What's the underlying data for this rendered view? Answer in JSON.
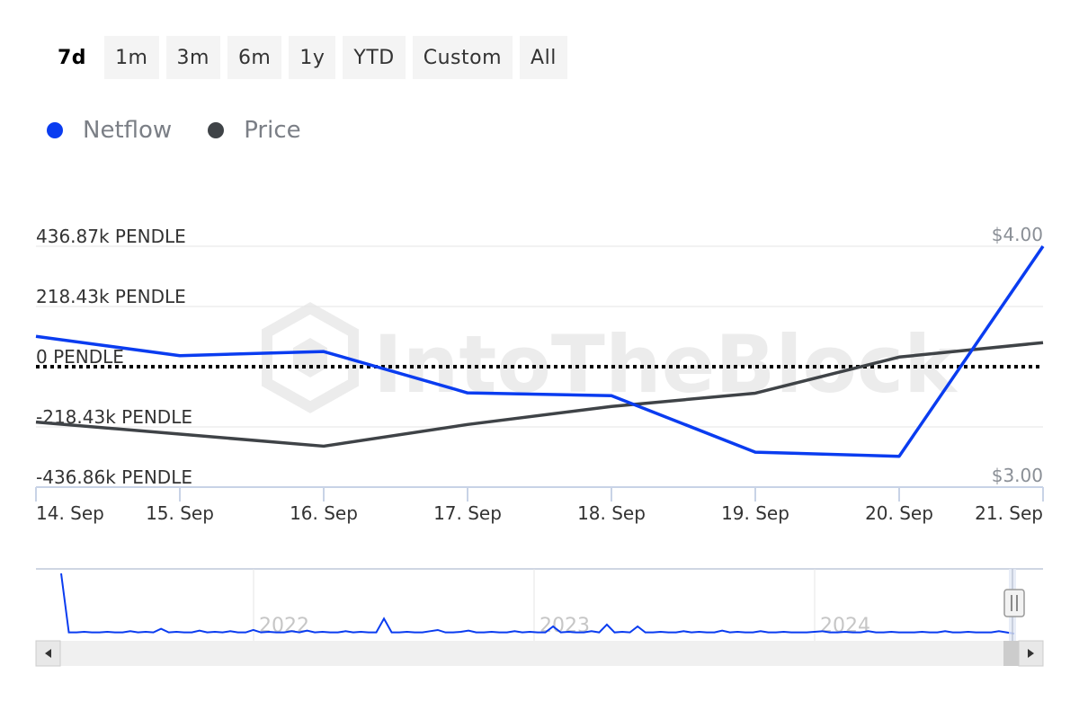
{
  "range_selector": {
    "buttons": [
      "7d",
      "1m",
      "3m",
      "6m",
      "1y",
      "YTD",
      "Custom",
      "All"
    ],
    "active": "7d"
  },
  "legend": [
    {
      "name": "Netflow",
      "color": "#0a3cf0"
    },
    {
      "name": "Price",
      "color": "#3f4347"
    }
  ],
  "colors": {
    "netflow": "#0a3cf0",
    "price": "#3f4347",
    "zero_line": "#000000",
    "grid": "#e6e6e6",
    "axis": "#c8d3e6"
  },
  "chart_data": {
    "type": "line",
    "x": [
      "14. Sep",
      "15. Sep",
      "16. Sep",
      "17. Sep",
      "18. Sep",
      "19. Sep",
      "20. Sep",
      "21. Sep"
    ],
    "series": [
      {
        "name": "Netflow",
        "axis": "left",
        "unit": "PENDLE",
        "values": [
          110000,
          40000,
          55000,
          -95000,
          -105000,
          -310000,
          -325000,
          436870
        ]
      },
      {
        "name": "Price",
        "axis": "right",
        "unit": "USD",
        "values": [
          3.27,
          3.22,
          3.17,
          3.26,
          3.335,
          3.39,
          3.54,
          3.6
        ]
      }
    ],
    "left_axis": {
      "ticks": [
        436870,
        218430,
        0,
        -218430,
        -436860
      ],
      "tick_labels": [
        "436.87k PENDLE",
        "218.43k PENDLE",
        "0 PENDLE",
        "-218.43k PENDLE",
        "-436.86k PENDLE"
      ],
      "ylim": [
        -436860,
        436870
      ]
    },
    "right_axis": {
      "ticks": [
        4.0,
        3.0
      ],
      "tick_labels": [
        "$4.00",
        "$3.00"
      ],
      "ylim": [
        3.0,
        4.0
      ]
    },
    "zero_line": true,
    "grid": true,
    "legend_position": "top-left",
    "watermark": "IntoTheBlock"
  },
  "navigator": {
    "year_labels": [
      "2022",
      "2023",
      "2024"
    ],
    "netflow_overview": [
      1.0,
      0.02,
      0.02,
      0.03,
      0.02,
      0.02,
      0.03,
      0.02,
      0.02,
      0.04,
      0.02,
      0.03,
      0.02,
      0.08,
      0.02,
      0.03,
      0.02,
      0.02,
      0.05,
      0.02,
      0.03,
      0.02,
      0.04,
      0.02,
      0.02,
      0.06,
      0.02,
      0.03,
      0.02,
      0.02,
      0.04,
      0.02,
      0.05,
      0.02,
      0.03,
      0.02,
      0.02,
      0.04,
      0.02,
      0.03,
      0.02,
      0.02,
      0.25,
      0.02,
      0.02,
      0.03,
      0.02,
      0.02,
      0.04,
      0.06,
      0.02,
      0.02,
      0.03,
      0.05,
      0.02,
      0.02,
      0.03,
      0.02,
      0.02,
      0.04,
      0.02,
      0.03,
      0.02,
      0.02,
      0.12,
      0.02,
      0.03,
      0.02,
      0.02,
      0.04,
      0.02,
      0.15,
      0.02,
      0.03,
      0.02,
      0.12,
      0.02,
      0.02,
      0.03,
      0.02,
      0.02,
      0.04,
      0.02,
      0.03,
      0.02,
      0.02,
      0.05,
      0.02,
      0.03,
      0.02,
      0.02,
      0.04,
      0.02,
      0.02,
      0.03,
      0.02,
      0.02,
      0.02,
      0.03,
      0.04,
      0.02,
      0.02,
      0.03,
      0.02,
      0.02,
      0.04,
      0.02,
      0.02,
      0.03,
      0.02,
      0.02,
      0.02,
      0.03,
      0.02,
      0.02,
      0.04,
      0.02,
      0.02,
      0.03,
      0.02,
      0.02,
      0.02,
      0.04,
      0.02,
      0.0
    ]
  }
}
